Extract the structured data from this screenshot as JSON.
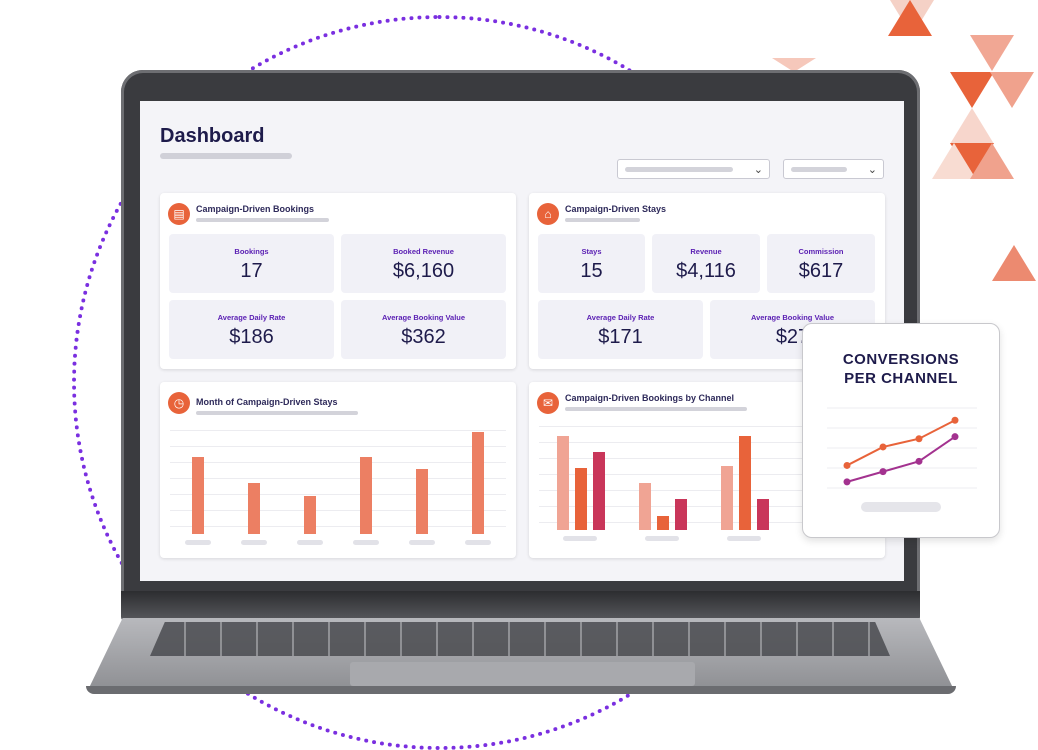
{
  "dashboard": {
    "title": "Dashboard",
    "filters": [
      {
        "icon": "chevron-down-icon"
      },
      {
        "icon": "chevron-down-icon"
      }
    ]
  },
  "bookings_card": {
    "title": "Campaign-Driven Bookings",
    "icon": "document-icon",
    "metrics": [
      {
        "label": "Bookings",
        "value": "17"
      },
      {
        "label": "Booked Revenue",
        "value": "$6,160"
      },
      {
        "label": "Average Daily Rate",
        "value": "$186"
      },
      {
        "label": "Average Booking Value",
        "value": "$362"
      }
    ]
  },
  "stays_card": {
    "title": "Campaign-Driven Stays",
    "icon": "bed-icon",
    "metrics": [
      {
        "label": "Stays",
        "value": "15"
      },
      {
        "label": "Revenue",
        "value": "$4,116"
      },
      {
        "label": "Commission",
        "value": "$617"
      },
      {
        "label": "Average Daily Rate",
        "value": "$171"
      },
      {
        "label": "Average Booking Value",
        "value": "$27"
      }
    ]
  },
  "month_chart_card": {
    "title": "Month of Campaign-Driven Stays",
    "icon": "clock-icon"
  },
  "channel_chart_card": {
    "title": "Campaign-Driven Bookings by Channel",
    "icon": "inbox-icon"
  },
  "overlay_card": {
    "title_line1": "CONVERSIONS",
    "title_line2": "PER CHANNEL"
  },
  "colors": {
    "accent": "#e8633a",
    "bar_month": "#ec7f63",
    "series_light": "#f0a494",
    "series_mid": "#e8633a",
    "series_dark": "#c9365a",
    "line_orange": "#e8633a",
    "line_purple": "#a3328f",
    "dotted_circle": "#7a2fe0",
    "title_navy": "#1e1b4b"
  },
  "chart_data": [
    {
      "type": "bar",
      "values": [
        78,
        52,
        39,
        78,
        66,
        104
      ],
      "ylim": [
        0,
        110
      ]
    },
    {
      "type": "bar",
      "series": [
        {
          "values": [
            78,
            39,
            53
          ]
        },
        {
          "values": [
            52,
            12,
            78
          ]
        },
        {
          "values": [
            65,
            26,
            26
          ]
        }
      ],
      "ylim": [
        0,
        90
      ]
    },
    {
      "type": "line",
      "x": [
        1,
        2,
        3,
        4
      ],
      "series": [
        {
          "values": [
            10,
            19,
            23,
            32
          ]
        },
        {
          "values": [
            2,
            7,
            12,
            24
          ]
        }
      ],
      "ylim": [
        0,
        36
      ]
    }
  ]
}
